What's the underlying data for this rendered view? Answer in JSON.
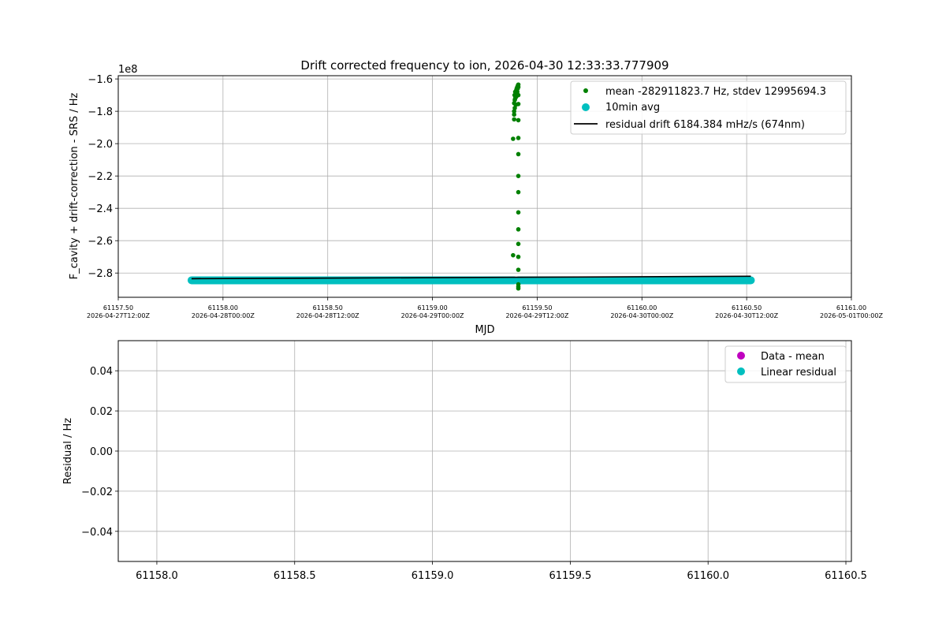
{
  "chart_data": [
    {
      "type": "scatter",
      "title": "Drift corrected frequency to ion, 2026-04-30 12:33:33.777909",
      "xlabel": "MJD",
      "ylabel": "F_cavity + drift-correction - SRS / Hz",
      "offset_text": "1e8",
      "xlim": [
        61157.5,
        61161.0
      ],
      "ylim": [
        -295000000.0,
        -158000000.0
      ],
      "grid": true,
      "legend_position": "top-right",
      "x_ticks": [
        {
          "value": 61157.5,
          "label": "61157.50",
          "date": "2026-04-27T12:00Z"
        },
        {
          "value": 61158.0,
          "label": "61158.00",
          "date": "2026-04-28T00:00Z"
        },
        {
          "value": 61158.5,
          "label": "61158.50",
          "date": "2026-04-28T12:00Z"
        },
        {
          "value": 61159.0,
          "label": "61159.00",
          "date": "2026-04-29T00:00Z"
        },
        {
          "value": 61159.5,
          "label": "61159.50",
          "date": "2026-04-29T12:00Z"
        },
        {
          "value": 61160.0,
          "label": "61160.00",
          "date": "2026-04-30T00:00Z"
        },
        {
          "value": 61160.5,
          "label": "61160.50",
          "date": "2026-04-30T12:00Z"
        },
        {
          "value": 61161.0,
          "label": "61161.00",
          "date": "2026-05-01T00:00Z"
        }
      ],
      "y_ticks": [
        {
          "value": -160000000.0,
          "label": "−1.6"
        },
        {
          "value": -180000000.0,
          "label": "−1.8"
        },
        {
          "value": -200000000.0,
          "label": "−2.0"
        },
        {
          "value": -220000000.0,
          "label": "−2.2"
        },
        {
          "value": -240000000.0,
          "label": "−2.4"
        },
        {
          "value": -260000000.0,
          "label": "−2.6"
        },
        {
          "value": -280000000.0,
          "label": "−2.8"
        }
      ],
      "series": [
        {
          "name": "mean -282911823.7 Hz, stdev 12995694.3",
          "style": "points",
          "color": "#008000",
          "points": [
            [
              61159.385,
              -197000000.0
            ],
            [
              61159.385,
              -269000000.0
            ],
            [
              61159.39,
              -175000000.0
            ],
            [
              61159.39,
              -180000000.0
            ],
            [
              61159.39,
              -182000000.0
            ],
            [
              61159.39,
              -185000000.0
            ],
            [
              61159.392,
              -170000000.0
            ],
            [
              61159.393,
              -173000000.0
            ],
            [
              61159.393,
              -178000000.0
            ],
            [
              61159.395,
              -168000000.0
            ],
            [
              61159.395,
              -172000000.0
            ],
            [
              61159.397,
              -169000000.0
            ],
            [
              61159.398,
              -176000000.0
            ],
            [
              61159.4,
              -167000000.0
            ],
            [
              61159.4,
              -171000000.0
            ],
            [
              61159.402,
              -166000000.0
            ],
            [
              61159.403,
              -169000000.0
            ],
            [
              61159.405,
              -165000000.0
            ],
            [
              61159.405,
              -168000000.0
            ],
            [
              61159.407,
              -166000000.0
            ],
            [
              61159.408,
              -164000000.0
            ],
            [
              61159.41,
              -165000000.0
            ],
            [
              61159.41,
              -163500000.0
            ],
            [
              61159.41,
              -170000000.0
            ],
            [
              61159.41,
              -175500000.0
            ],
            [
              61159.41,
              -185500000.0
            ],
            [
              61159.41,
              -196500000.0
            ],
            [
              61159.41,
              -206500000.0
            ],
            [
              61159.41,
              -220000000.0
            ],
            [
              61159.41,
              -230000000.0
            ],
            [
              61159.41,
              -242500000.0
            ],
            [
              61159.41,
              -253000000.0
            ],
            [
              61159.41,
              -262000000.0
            ],
            [
              61159.41,
              -270000000.0
            ],
            [
              61159.41,
              -278000000.0
            ],
            [
              61159.41,
              -287000000.0
            ],
            [
              61159.41,
              -288500000.0
            ],
            [
              61159.41,
              -289500000.0
            ]
          ]
        },
        {
          "name": "10min avg",
          "style": "band",
          "color": "#00bfbf",
          "segments": [
            {
              "x_start": 61157.85,
              "x_end": 61159.39,
              "y": -284500000.0
            },
            {
              "x_start": 61159.41,
              "x_end": 61160.52,
              "y": -284500000.0
            }
          ]
        },
        {
          "name": "residual drift 6184.384 mHz/s (674nm)",
          "style": "line",
          "color": "#000000",
          "points": [
            [
              61157.85,
              -283500000.0
            ],
            [
              61160.52,
              -282000000.0
            ]
          ]
        }
      ]
    },
    {
      "type": "scatter",
      "title": "",
      "xlabel": "",
      "ylabel": "Residual / Hz",
      "xlim": [
        61157.86,
        61160.52
      ],
      "ylim": [
        -0.055,
        0.055
      ],
      "grid": true,
      "legend_position": "top-right",
      "x_ticks": [
        {
          "value": 61158.0,
          "label": "61158.0"
        },
        {
          "value": 61158.5,
          "label": "61158.5"
        },
        {
          "value": 61159.0,
          "label": "61159.0"
        },
        {
          "value": 61159.5,
          "label": "61159.5"
        },
        {
          "value": 61160.0,
          "label": "61160.0"
        },
        {
          "value": 61160.5,
          "label": "61160.5"
        }
      ],
      "y_ticks": [
        {
          "value": 0.04,
          "label": "0.04"
        },
        {
          "value": 0.02,
          "label": "0.02"
        },
        {
          "value": 0.0,
          "label": "0.00"
        },
        {
          "value": -0.02,
          "label": "−0.02"
        },
        {
          "value": -0.04,
          "label": "−0.04"
        }
      ],
      "series": [
        {
          "name": "Data - mean",
          "style": "marker",
          "color": "#bf00bf",
          "points": []
        },
        {
          "name": "Linear residual",
          "style": "marker",
          "color": "#00bfbf",
          "points": []
        }
      ]
    }
  ]
}
